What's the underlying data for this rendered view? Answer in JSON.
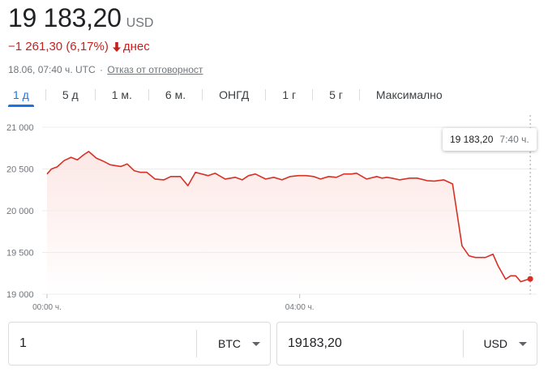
{
  "quote": {
    "price": "19 183,20",
    "currency": "USD",
    "change": "−1 261,30 (6,17%)",
    "period": "днес",
    "timestamp": "18.06, 07:40 ч. UTC",
    "separator": "·",
    "disclaimer": "Отказ от отговорност"
  },
  "tabs": [
    {
      "label": "1 д",
      "active": true
    },
    {
      "label": "5 д"
    },
    {
      "label": "1 м."
    },
    {
      "label": "6 м."
    },
    {
      "label": "ОНГД"
    },
    {
      "label": "1 г"
    },
    {
      "label": "5 г"
    },
    {
      "label": "Максимално"
    }
  ],
  "tooltip": {
    "price": "19 183,20",
    "time": "7:40 ч."
  },
  "colors": {
    "line": "#d93025",
    "accent": "#1a73e8",
    "negative": "#c5221f"
  },
  "chart_data": {
    "type": "area",
    "ylim": [
      19000,
      21000
    ],
    "yticks": [
      21000,
      20500,
      20000,
      19500,
      19000
    ],
    "ytick_labels": [
      "21 000",
      "20 500",
      "20 000",
      "19 500",
      "19 000"
    ],
    "xlim": [
      0,
      7.7
    ],
    "xticks": [
      0,
      4
    ],
    "xtick_labels": [
      "00:00 ч.",
      "04:00 ч."
    ],
    "grid": true,
    "x": [
      0,
      0.07,
      0.16,
      0.27,
      0.38,
      0.48,
      0.58,
      0.66,
      0.78,
      0.9,
      1.0,
      1.17,
      1.27,
      1.38,
      1.48,
      1.58,
      1.71,
      1.85,
      1.96,
      2.11,
      2.23,
      2.35,
      2.55,
      2.66,
      2.82,
      2.98,
      3.09,
      3.19,
      3.3,
      3.46,
      3.59,
      3.72,
      3.85,
      3.98,
      4.1,
      4.22,
      4.33,
      4.46,
      4.58,
      4.7,
      4.82,
      4.9,
      5.06,
      5.22,
      5.3,
      5.38,
      5.46,
      5.58,
      5.74,
      5.86,
      6.02,
      6.13,
      6.28,
      6.42,
      6.57,
      6.68,
      6.78,
      6.86,
      6.94,
      7.06,
      7.14,
      7.26,
      7.34,
      7.42,
      7.5,
      7.58,
      7.65
    ],
    "y": [
      20440,
      20500,
      20525,
      20600,
      20640,
      20610,
      20670,
      20710,
      20630,
      20590,
      20550,
      20530,
      20560,
      20480,
      20460,
      20460,
      20380,
      20370,
      20410,
      20410,
      20300,
      20460,
      20420,
      20450,
      20380,
      20400,
      20370,
      20420,
      20440,
      20380,
      20400,
      20370,
      20410,
      20420,
      20420,
      20410,
      20380,
      20410,
      20400,
      20440,
      20440,
      20450,
      20380,
      20410,
      20390,
      20400,
      20390,
      20370,
      20390,
      20390,
      20360,
      20355,
      20370,
      20320,
      19580,
      19460,
      19440,
      19440,
      19440,
      19480,
      19340,
      19180,
      19220,
      19220,
      19150,
      19170,
      19183
    ]
  },
  "converter": {
    "left": {
      "amount": "1",
      "currency": "BTC"
    },
    "right": {
      "amount": "19183,20",
      "currency": "USD"
    }
  }
}
